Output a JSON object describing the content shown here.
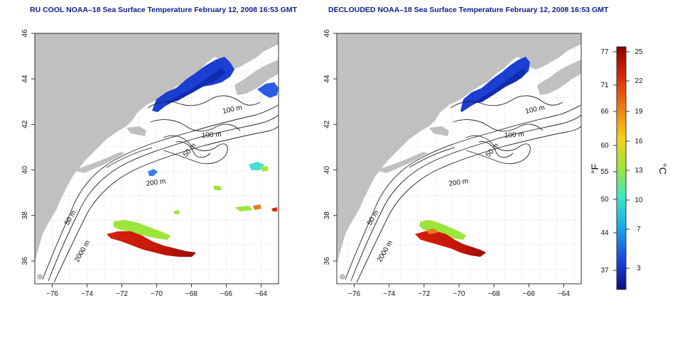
{
  "panels": [
    {
      "id": "left",
      "title": "RU COOL NOAA–18 Sea Surface Temperature February 12, 2008 16:53 GMT"
    },
    {
      "id": "right",
      "title": "DECLOUDED NOAA–18 Sea Surface Temperature February 12, 2008 16:53 GMT"
    }
  ],
  "axes": {
    "lon_ticks": [
      "−76",
      "−74",
      "−72",
      "−70",
      "−68",
      "−66",
      "−64"
    ],
    "lat_ticks": [
      "36",
      "38",
      "40",
      "42",
      "44",
      "46"
    ]
  },
  "contour_labels": {
    "left": [
      "100 m",
      "100 m",
      "50 m",
      "200 m",
      "50 m",
      "2000 m"
    ],
    "right": [
      "100 m",
      "100 m",
      "50 m",
      "200 m",
      "50 m",
      "2000 m"
    ]
  },
  "colorbar": {
    "f_label": "°F",
    "c_label": "°C",
    "f_ticks": [
      "77",
      "71",
      "66",
      "60",
      "55",
      "50",
      "44",
      "37"
    ],
    "c_ticks": [
      "25",
      "22",
      "19",
      "16",
      "13",
      "10",
      "7",
      "3"
    ],
    "colors": [
      "#8b0000",
      "#d42a0a",
      "#f27a12",
      "#f5d21c",
      "#9be63a",
      "#3ce6c8",
      "#16a6f0",
      "#1c46d8",
      "#0a0a8a"
    ]
  }
}
